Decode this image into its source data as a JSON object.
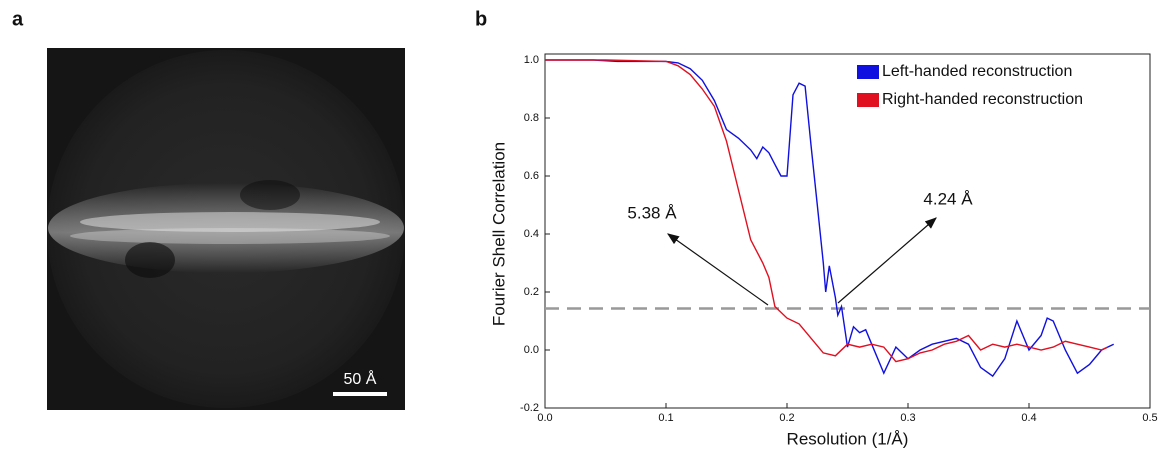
{
  "panel_labels": [
    "a",
    "b"
  ],
  "image": {
    "scale_bar_label": "50 Å"
  },
  "chart_data": {
    "type": "line",
    "xlabel": "Resolution (1/Å)",
    "ylabel": "Fourier Shell Correlation",
    "xlim": [
      0,
      0.5
    ],
    "ylim": [
      -0.2,
      1.0
    ],
    "xticks": [
      {
        "value": 0,
        "label": "0.0"
      },
      0.1,
      0.2,
      0.3,
      0.4,
      0.5
    ],
    "yticks": [
      -0.2,
      {
        "value": 0,
        "label": "0.0"
      },
      0.2,
      0.4,
      0.6,
      0.8,
      {
        "value": 1,
        "label": "1.0"
      }
    ],
    "threshold": 0.143,
    "threshold_color": "#999999",
    "annotations": [
      "5.38 Å",
      "4.24 Å"
    ],
    "legend": "upper right",
    "series": [
      {
        "name": "Left-handed reconstruction",
        "color": "#1010e0",
        "x": [
          0,
          0.02,
          0.04,
          0.06,
          0.08,
          0.1,
          0.11,
          0.12,
          0.13,
          0.14,
          0.15,
          0.16,
          0.17,
          0.175,
          0.18,
          0.185,
          0.19,
          0.195,
          0.2,
          0.205,
          0.21,
          0.215,
          0.22,
          0.225,
          0.23,
          0.232,
          0.235,
          0.24,
          0.242,
          0.245,
          0.25,
          0.255,
          0.26,
          0.265,
          0.27,
          0.28,
          0.29,
          0.3,
          0.31,
          0.32,
          0.33,
          0.34,
          0.35,
          0.36,
          0.37,
          0.38,
          0.39,
          0.4,
          0.41,
          0.415,
          0.42,
          0.43,
          0.44,
          0.45,
          0.46,
          0.47
        ],
        "values": [
          1.0,
          1.0,
          1.0,
          0.995,
          0.995,
          0.995,
          0.99,
          0.97,
          0.93,
          0.86,
          0.76,
          0.73,
          0.69,
          0.66,
          0.7,
          0.68,
          0.64,
          0.6,
          0.6,
          0.88,
          0.92,
          0.91,
          0.7,
          0.5,
          0.3,
          0.2,
          0.29,
          0.18,
          0.12,
          0.15,
          0.01,
          0.08,
          0.06,
          0.07,
          0.02,
          -0.08,
          0.01,
          -0.03,
          0.0,
          0.02,
          0.03,
          0.04,
          0.02,
          -0.06,
          -0.09,
          -0.03,
          0.1,
          0.0,
          0.05,
          0.11,
          0.1,
          0.0,
          -0.08,
          -0.05,
          0.0,
          0.02
        ]
      },
      {
        "name": "Right-handed reconstruction",
        "color": "#e01020",
        "x": [
          0,
          0.05,
          0.1,
          0.11,
          0.12,
          0.13,
          0.14,
          0.15,
          0.16,
          0.17,
          0.18,
          0.185,
          0.19,
          0.2,
          0.21,
          0.22,
          0.23,
          0.24,
          0.25,
          0.26,
          0.27,
          0.28,
          0.29,
          0.3,
          0.31,
          0.32,
          0.33,
          0.34,
          0.35,
          0.36,
          0.37,
          0.38,
          0.39,
          0.4,
          0.41,
          0.42,
          0.43,
          0.44,
          0.45,
          0.46,
          0.465
        ],
        "values": [
          1.0,
          1.0,
          0.995,
          0.98,
          0.95,
          0.9,
          0.84,
          0.72,
          0.55,
          0.38,
          0.3,
          0.25,
          0.15,
          0.11,
          0.09,
          0.04,
          -0.01,
          -0.02,
          0.02,
          0.01,
          0.02,
          0.01,
          -0.04,
          -0.03,
          -0.01,
          0.0,
          0.02,
          0.03,
          0.05,
          0.0,
          0.02,
          0.01,
          0.02,
          0.01,
          0.0,
          0.01,
          0.03,
          0.02,
          0.01,
          0.0,
          0.01
        ]
      }
    ]
  }
}
